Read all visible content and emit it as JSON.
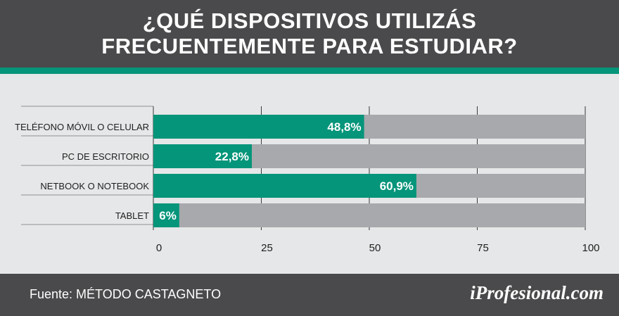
{
  "header": {
    "title_line1": "¿QUÉ DISPOSITIVOS UTILIZÁS",
    "title_line2": "FRECUENTEMENTE PARA ESTUDIAR?"
  },
  "footer": {
    "source": "Fuente: MÉTODO CASTAGNETO",
    "brand": "iProfesional.com"
  },
  "colors": {
    "header_bg": "#4a4a4c",
    "accent": "#05957a",
    "bar_fill": "#05957a",
    "bar_track": "#a7a9ac",
    "background": "#e6e7e8"
  },
  "chart_data": {
    "type": "bar",
    "orientation": "horizontal",
    "title": "¿QUÉ DISPOSITIVOS UTILIZÁS FRECUENTEMENTE PARA ESTUDIAR?",
    "categories": [
      "TELÉFONO MÓVIL O CELULAR",
      "PC DE ESCRITORIO",
      "NETBOOK O NOTEBOOK",
      "TABLET"
    ],
    "values": [
      48.8,
      22.8,
      60.9,
      6
    ],
    "value_labels": [
      "48,8%",
      "22,8%",
      "60,9%",
      "6%"
    ],
    "xlim": [
      0,
      100
    ],
    "xticks": [
      0,
      25,
      50,
      75,
      100
    ],
    "grid": true,
    "legend": "none"
  }
}
